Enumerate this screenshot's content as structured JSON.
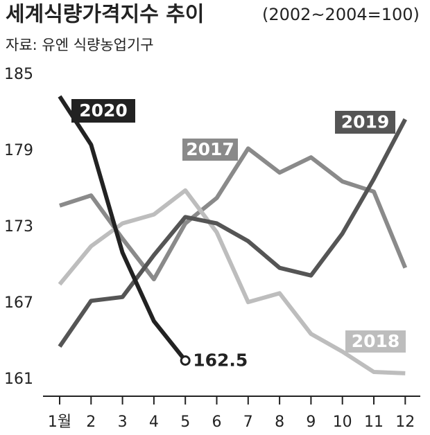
{
  "chart_data": {
    "type": "line",
    "title": "세계식량가격지수 추이",
    "subtitle": "(2002~2004=100)",
    "source": "자료: 유엔 식량농업기구",
    "categories": [
      "1월",
      "2",
      "3",
      "4",
      "5",
      "6",
      "7",
      "8",
      "9",
      "10",
      "11",
      "12"
    ],
    "series": [
      {
        "name": "2017",
        "color": "#8a8a8a",
        "values": [
          174.7,
          175.5,
          172.1,
          168.9,
          173.3,
          175.3,
          179.2,
          177.3,
          178.5,
          176.6,
          175.8,
          169.8
        ]
      },
      {
        "name": "2018",
        "color": "#bdbdbd",
        "values": [
          168.5,
          171.5,
          173.3,
          174.0,
          175.9,
          172.6,
          167.1,
          167.8,
          164.6,
          163.2,
          161.6,
          161.5
        ]
      },
      {
        "name": "2019",
        "color": "#555555",
        "values": [
          163.6,
          167.2,
          167.5,
          170.8,
          173.8,
          173.3,
          171.9,
          169.8,
          169.2,
          172.5,
          176.8,
          181.5
        ]
      },
      {
        "name": "2020",
        "color": "#222222",
        "values": [
          183.3,
          179.5,
          171.0,
          165.6,
          162.5,
          null,
          null,
          null,
          null,
          null,
          null,
          null
        ]
      }
    ],
    "ylim": [
      161,
      185
    ],
    "yticks": [
      161,
      167,
      173,
      179,
      185
    ]
  }
}
